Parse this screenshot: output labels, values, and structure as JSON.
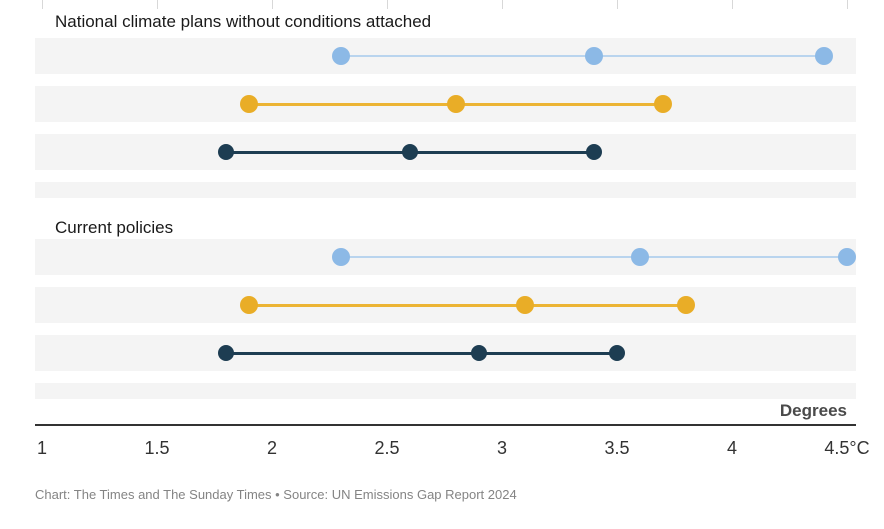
{
  "chart_data": {
    "type": "dot-range",
    "xlabel": "Degrees",
    "xlim": [
      1,
      4.5
    ],
    "x_tick_values": [
      1,
      1.5,
      2,
      2.5,
      3,
      3.5,
      4,
      4.5
    ],
    "x_tick_labels": [
      "1",
      "1.5",
      "2",
      "2.5",
      "3",
      "3.5",
      "4",
      "4.5°C"
    ],
    "grid": "top-stubs-only",
    "legend_position": "none",
    "groups": [
      {
        "label": "National climate plans without conditions attached",
        "rows": [
          {
            "series": "light-blue",
            "dot_color": "#8cb9e6",
            "line_color": "#b9d4ee",
            "values": [
              2.3,
              3.4,
              4.4
            ]
          },
          {
            "series": "yellow",
            "dot_color": "#e9ad27",
            "line_color": "#ecb434",
            "values": [
              1.9,
              2.8,
              3.7
            ]
          },
          {
            "series": "dark-navy",
            "dot_color": "#1d3d52",
            "line_color": "#1d3d52",
            "values": [
              1.8,
              2.6,
              3.4
            ]
          }
        ]
      },
      {
        "label": "Current policies",
        "rows": [
          {
            "series": "light-blue",
            "dot_color": "#8cb9e6",
            "line_color": "#b9d4ee",
            "values": [
              2.3,
              3.6,
              4.5
            ]
          },
          {
            "series": "yellow",
            "dot_color": "#e9ad27",
            "line_color": "#ecb434",
            "values": [
              1.9,
              3.1,
              3.8
            ]
          },
          {
            "series": "dark-navy",
            "dot_color": "#1d3d52",
            "line_color": "#1d3d52",
            "values": [
              1.8,
              2.9,
              3.5
            ]
          }
        ]
      }
    ],
    "caption": "Chart: The Times and The Sunday Times • Source: UN Emissions Gap Report 2024",
    "band_color": "#f4f4f4"
  }
}
